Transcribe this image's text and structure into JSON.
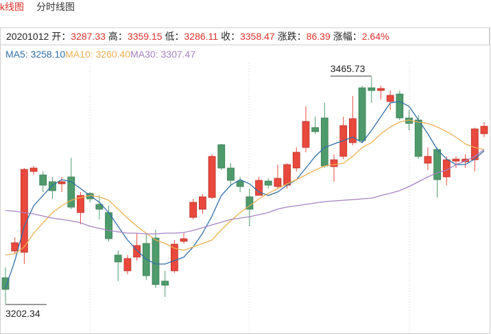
{
  "tabs": [
    "k线图",
    "分时线图"
  ],
  "quote": {
    "date": "20201012",
    "fields": [
      {
        "label": "开：",
        "value": "3287.33"
      },
      {
        "label": "高：",
        "value": "3359.15"
      },
      {
        "label": "低：",
        "value": "3286.11"
      },
      {
        "label": "收：",
        "value": "3358.47"
      },
      {
        "label": "涨跌：",
        "value": "86.39"
      },
      {
        "label": "涨幅：",
        "value": "2.64%"
      }
    ]
  },
  "chart_data": {
    "type": "candlestick",
    "colors": {
      "up": "#e9483c",
      "down": "#4e9a6b"
    },
    "open": [
      3232.6,
      3263.6,
      3262.1,
      3355.9,
      3351.9,
      3344.0,
      3341.6,
      3349.6,
      3308.2,
      3330.4,
      3317.7,
      3308.2,
      3258.9,
      3240.6,
      3256.5,
      3272.4,
      3278.7,
      3228.7,
      3240.6,
      3274.8,
      3302.6,
      3312.1,
      3325.7,
      3387.0,
      3359.9,
      3344.8,
      3326.5,
      3328.1,
      3344.8,
      3338.4,
      3340.0,
      3359.9,
      3383.8,
      3406.9,
      3418.0,
      3361.5,
      3373.4,
      3389.3,
      3453.0,
      3453.0,
      3449.8,
      3437.1,
      3445.8,
      3418.0,
      3415.6,
      3365.5,
      3381.4,
      3349.6,
      3367.9,
      3367.1,
      3369.5,
      3399.7
    ],
    "high": [
      3244.6,
      3279.5,
      3359.9,
      3362.3,
      3355.9,
      3349.6,
      3349.6,
      3371.8,
      3332.0,
      3332.0,
      3328.1,
      3316.1,
      3264.4,
      3258.9,
      3284.3,
      3284.3,
      3288.3,
      3240.6,
      3276.4,
      3284.3,
      3324.1,
      3329.6,
      3375.8,
      3387.8,
      3365.5,
      3349.6,
      3336.0,
      3349.6,
      3348.0,
      3363.9,
      3365.5,
      3383.8,
      3431.5,
      3419.6,
      3435.5,
      3375.8,
      3419.6,
      3443.5,
      3455.4,
      3465.73,
      3455.4,
      3449.8,
      3449.8,
      3427.5,
      3421.2,
      3383.8,
      3383.8,
      3373.4,
      3373.4,
      3375.8,
      3406.9,
      3413.2
    ],
    "low": [
      3202.34,
      3260.5,
      3248.5,
      3351.9,
      3332.0,
      3324.1,
      3332.0,
      3312.1,
      3294.6,
      3320.1,
      3300.2,
      3274.8,
      3228.7,
      3236.6,
      3252.5,
      3230.2,
      3220.7,
      3210.3,
      3238.2,
      3272.4,
      3300.2,
      3306.6,
      3324.1,
      3357.5,
      3338.4,
      3332.0,
      3292.2,
      3328.1,
      3336.0,
      3336.0,
      3336.0,
      3355.9,
      3378.2,
      3399.7,
      3359.9,
      3344.0,
      3370.3,
      3386.2,
      3389.3,
      3435.5,
      3439.5,
      3427.5,
      3415.6,
      3403.7,
      3370.3,
      3357.5,
      3325.7,
      3340.0,
      3359.9,
      3359.9,
      3355.9,
      3395.7
    ],
    "close": [
      3219.1,
      3273.2,
      3358.3,
      3359.9,
      3340.0,
      3333.6,
      3344.0,
      3314.5,
      3328.1,
      3324.1,
      3312.1,
      3277.9,
      3250.9,
      3254.9,
      3270.0,
      3235.0,
      3224.7,
      3223.9,
      3271.6,
      3277.9,
      3320.1,
      3326.5,
      3373.4,
      3359.9,
      3345.6,
      3338.4,
      3312.1,
      3345.6,
      3340.0,
      3348.0,
      3363.9,
      3378.2,
      3414.0,
      3402.1,
      3362.3,
      3369.5,
      3409.2,
      3417.2,
      3391.7,
      3449.8,
      3452.2,
      3444.3,
      3418.0,
      3411.6,
      3373.4,
      3373.4,
      3346.4,
      3369.5,
      3370.3,
      3370.3,
      3405.3,
      3408.4
    ],
    "series": [
      {
        "label": "MA5: 3258.10",
        "color": "#2f6ea8",
        "values": [
          3220.7,
          3252.5,
          3292.3,
          3316.1,
          3328.1,
          3340.0,
          3346.4,
          3344.0,
          3336.0,
          3328.1,
          3320.1,
          3308.2,
          3292.3,
          3276.4,
          3264.4,
          3254.1,
          3248.5,
          3248.5,
          3252.5,
          3256.5,
          3268.4,
          3284.3,
          3304.2,
          3328.1,
          3340.0,
          3346.4,
          3341.6,
          3332.1,
          3328.1,
          3332.1,
          3340.0,
          3346.4,
          3359.9,
          3373.4,
          3383.8,
          3387.8,
          3391.7,
          3395.7,
          3389.3,
          3403.7,
          3419.6,
          3435.5,
          3437.1,
          3431.5,
          3415.6,
          3399.7,
          3381.4,
          3370.3,
          3363.9,
          3363.9,
          3370.3,
          3379.8
        ]
      },
      {
        "label": "MA10: 3260.40",
        "color": "#eeae52",
        "values": [
          3258.9,
          3260.4,
          3268.4,
          3284.3,
          3296.3,
          3308.2,
          3316.1,
          3322.5,
          3325.7,
          3328.1,
          3326.5,
          3322.5,
          3312.2,
          3301.8,
          3292.3,
          3284.3,
          3276.4,
          3272.4,
          3266.8,
          3264.4,
          3268.4,
          3272.4,
          3276.4,
          3288.3,
          3298.6,
          3308.2,
          3316.1,
          3324.1,
          3330.5,
          3336.0,
          3341.6,
          3346.4,
          3351.9,
          3357.5,
          3362.3,
          3363.9,
          3365.5,
          3373.4,
          3383.8,
          3389.3,
          3399.7,
          3407.6,
          3413.2,
          3415.6,
          3413.2,
          3411.6,
          3407.6,
          3402.1,
          3395.7,
          3387.8,
          3383.8,
          3381.4
        ]
      },
      {
        "label": "MA30: 3307.47",
        "color": "#a57fc4",
        "values": [
          3310.6,
          3309.8,
          3308.2,
          3306.6,
          3304.2,
          3301.8,
          3300.2,
          3298.6,
          3296.3,
          3292.3,
          3289.9,
          3287.5,
          3285.9,
          3284.3,
          3284.3,
          3283.5,
          3283.5,
          3284.3,
          3284.3,
          3285.1,
          3287.5,
          3290.7,
          3293.9,
          3297.0,
          3300.2,
          3301.8,
          3303.4,
          3305.8,
          3308.2,
          3312.2,
          3314.6,
          3316.1,
          3317.7,
          3319.3,
          3320.9,
          3321.7,
          3322.5,
          3323.3,
          3324.1,
          3324.9,
          3328.1,
          3330.5,
          3333.7,
          3338.4,
          3344.0,
          3349.6,
          3354.3,
          3357.5,
          3363.9,
          3367.9,
          3373.4,
          3381.4
        ]
      }
    ]
  }
}
